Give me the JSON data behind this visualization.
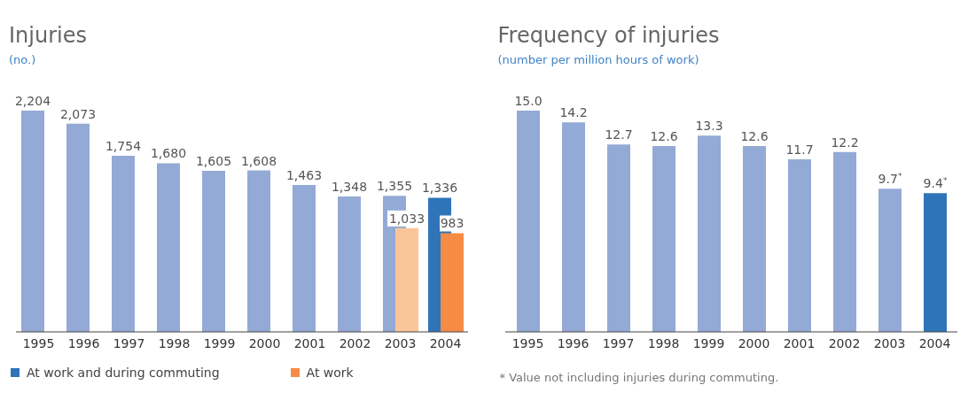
{
  "chart_data": [
    {
      "type": "bar",
      "title": "Injuries",
      "subtitle": "(no.)",
      "categories": [
        "1995",
        "1996",
        "1997",
        "1998",
        "1999",
        "2000",
        "2001",
        "2002",
        "2003",
        "2004"
      ],
      "series": [
        {
          "name": "At work and during commuting",
          "color": "#2f74b8",
          "colors": [
            "#94aad6",
            "#94aad6",
            "#94aad6",
            "#94aad6",
            "#94aad6",
            "#94aad6",
            "#94aad6",
            "#94aad6",
            "#94aad6",
            "#2f74b8"
          ],
          "values": [
            2204,
            2073,
            1754,
            1680,
            1605,
            1608,
            1463,
            1348,
            1355,
            1336
          ],
          "value_labels": [
            "2,204",
            "2,073",
            "1,754",
            "1,680",
            "1,605",
            "1,608",
            "1,463",
            "1,348",
            "1,355",
            "1,336"
          ]
        },
        {
          "name": "At work",
          "color": "#f68b45",
          "colors": [
            null,
            null,
            null,
            null,
            null,
            null,
            null,
            null,
            "#fbc59a",
            "#f68b45"
          ],
          "values": [
            null,
            null,
            null,
            null,
            null,
            null,
            null,
            null,
            1033,
            983
          ],
          "value_labels": [
            null,
            null,
            null,
            null,
            null,
            null,
            null,
            null,
            "1,033",
            "983"
          ]
        }
      ],
      "legend": "bottom"
    },
    {
      "type": "bar",
      "title": "Frequency of injuries",
      "subtitle": "(number per million hours of work)",
      "categories": [
        "1995",
        "1996",
        "1997",
        "1998",
        "1999",
        "2000",
        "2001",
        "2002",
        "2003",
        "2004"
      ],
      "values": [
        15.0,
        14.2,
        12.7,
        12.6,
        13.3,
        12.6,
        11.7,
        12.2,
        9.7,
        9.4
      ],
      "colors": [
        "#94aad6",
        "#94aad6",
        "#94aad6",
        "#94aad6",
        "#94aad6",
        "#94aad6",
        "#94aad6",
        "#94aad6",
        "#94aad6",
        "#2f74b8"
      ],
      "value_labels": [
        "15.0",
        "14.2",
        "12.7",
        "12.6",
        "13.3",
        "12.6",
        "11.7",
        "12.2",
        "9.7$^{*}$",
        "9.4$^{*}$"
      ],
      "annotations": [
        "* Value not including injuries during commuting."
      ]
    }
  ]
}
